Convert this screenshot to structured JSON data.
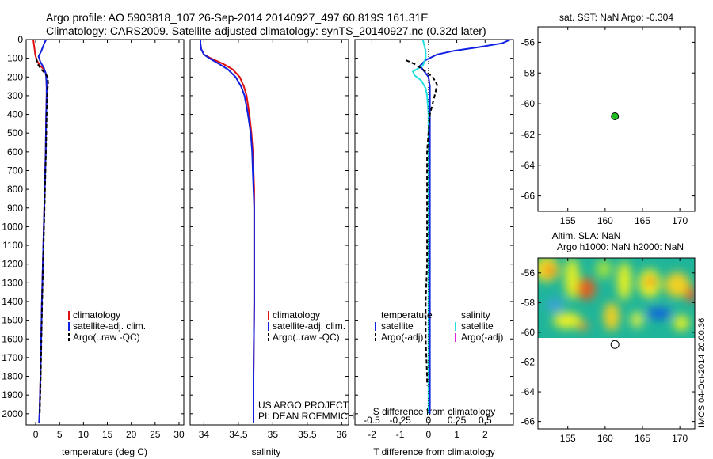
{
  "title": {
    "line1": "Argo profile: AO 5903818_107 26-Sep-2014 20140927_497 60.819S 161.31E",
    "line2": "Climatology: CARS2009. Satellite-adjusted climatology: synTS_20140927.nc (0.32d later)"
  },
  "watermark": "IMOS 04-Oct-2014 20:00:36",
  "project": {
    "line1": "US ARGO PROJECT",
    "line2": "PI: DEAN ROEMMICH"
  },
  "colors": {
    "climatology": "#e01010",
    "satellite": "#1020e0",
    "argo": "#000000",
    "salinity_satellite": "#20e0e0",
    "salinity_argo": "#e020e0",
    "marker": "#22bb22"
  },
  "chart_data": [
    {
      "id": "temperature",
      "type": "line",
      "xlabel": "temperature (deg C)",
      "xlim": [
        -2,
        31
      ],
      "xticks": [
        0,
        5,
        10,
        15,
        20,
        25,
        30
      ],
      "ylim": [
        0,
        2060
      ],
      "yticks": [
        0,
        100,
        200,
        300,
        400,
        500,
        600,
        700,
        800,
        900,
        1000,
        1100,
        1200,
        1300,
        1400,
        1500,
        1600,
        1700,
        1800,
        1900,
        2000
      ],
      "y_reversed": true,
      "legend": [
        "climatology",
        "satellite-adj. clim.",
        "Argo(..raw -QC)"
      ],
      "series": [
        {
          "name": "climatology",
          "depth": [
            0,
            40,
            80,
            110,
            140,
            160,
            180,
            200,
            250,
            300,
            400,
            600,
            800,
            1000,
            1200,
            1400,
            1600,
            1800,
            2000,
            2050
          ],
          "values": [
            -0.5,
            -0.3,
            -0.1,
            0.2,
            0.9,
            1.8,
            2.1,
            2.2,
            2.3,
            2.3,
            2.2,
            2.1,
            1.9,
            1.7,
            1.5,
            1.3,
            1.15,
            1.0,
            0.8,
            0.7
          ]
        },
        {
          "name": "satellite-adj. clim.",
          "depth": [
            0,
            20,
            60,
            90,
            120,
            150,
            180,
            200,
            250,
            300,
            400,
            600,
            800,
            1000,
            1200,
            1400,
            1600,
            1800,
            2000,
            2050
          ],
          "values": [
            2.2,
            1.8,
            1.2,
            0.6,
            1.0,
            1.7,
            2.1,
            2.2,
            2.3,
            2.3,
            2.2,
            2.1,
            1.9,
            1.7,
            1.5,
            1.3,
            1.15,
            1.0,
            0.8,
            0.7
          ]
        },
        {
          "name": "Argo(..raw -QC)",
          "depth": [
            100,
            130,
            160,
            180,
            200,
            230,
            260,
            300,
            400,
            600,
            800,
            1000,
            1200,
            1400,
            1600,
            1800,
            2000
          ],
          "values": [
            0.1,
            0.4,
            1.2,
            2.0,
            2.5,
            2.6,
            2.5,
            2.4,
            2.3,
            2.15,
            1.95,
            1.75,
            1.55,
            1.35,
            1.2,
            1.05,
            0.85
          ]
        }
      ]
    },
    {
      "id": "salinity",
      "type": "line",
      "xlabel": "salinity",
      "xlim": [
        33.8,
        36.1
      ],
      "xticks": [
        34,
        34.5,
        35,
        35.5,
        36
      ],
      "ylim": [
        0,
        2060
      ],
      "y_reversed": true,
      "legend": [
        "climatology",
        "satellite-adj. clim.",
        "Argo(..raw -QC)"
      ],
      "series": [
        {
          "name": "climatology",
          "depth": [
            0,
            20,
            50,
            80,
            100,
            130,
            160,
            200,
            250,
            300,
            400,
            500,
            600,
            700,
            800,
            900,
            1000,
            1400,
            1800,
            2050
          ],
          "values": [
            33.95,
            33.95,
            33.96,
            34.0,
            34.1,
            34.28,
            34.42,
            34.52,
            34.58,
            34.62,
            34.66,
            34.69,
            34.71,
            34.72,
            34.73,
            34.73,
            34.73,
            34.73,
            34.72,
            34.72
          ]
        },
        {
          "name": "satellite-adj. clim.",
          "depth": [
            0,
            20,
            50,
            80,
            100,
            130,
            160,
            200,
            250,
            300,
            400,
            500,
            600,
            700,
            800,
            900,
            1000,
            1400,
            1800,
            2050
          ],
          "values": [
            33.95,
            33.95,
            33.96,
            34.0,
            34.08,
            34.22,
            34.35,
            34.46,
            34.54,
            34.59,
            34.64,
            34.68,
            34.7,
            34.71,
            34.72,
            34.73,
            34.73,
            34.73,
            34.72,
            34.72
          ]
        }
      ]
    },
    {
      "id": "difference",
      "type": "line",
      "xlabel": "T difference from climatology",
      "xlim": [
        -2.6,
        3.0
      ],
      "xticks": [
        -2,
        -1,
        0,
        1,
        2
      ],
      "top_label": "S difference from climatology",
      "top_ticks": [
        "-0.5",
        "-0.25",
        "0",
        "0.25",
        "0.5"
      ],
      "top_tick_positions": [
        -2,
        -1,
        0,
        1,
        2
      ],
      "ylim": [
        0,
        2060
      ],
      "y_reversed": true,
      "legend": {
        "temperature_heading": "temperature",
        "salinity_heading": "salinity",
        "temperature": [
          "satellite",
          "Argo(-adj)"
        ],
        "salinity": [
          "satellite",
          "Argo(-adj)"
        ]
      },
      "series": [
        {
          "name": "T satellite",
          "depth": [
            0,
            20,
            40,
            60,
            80,
            110,
            140,
            170,
            200,
            250,
            300,
            400,
            600,
            800,
            1000,
            1400,
            1800,
            2000
          ],
          "values": [
            2.9,
            2.6,
            1.8,
            0.9,
            0.3,
            -0.1,
            -0.3,
            -0.15,
            0.0,
            0.05,
            0.05,
            0.05,
            0.05,
            0.05,
            0.05,
            0.05,
            0.05,
            0.05
          ]
        },
        {
          "name": "S satellite",
          "depth": [
            0,
            30,
            60,
            100,
            140,
            170,
            190,
            220,
            260,
            300,
            400,
            600,
            800,
            1000,
            1400,
            1800,
            2000
          ],
          "values": [
            -0.2,
            -0.15,
            -0.1,
            -0.1,
            -0.2,
            -0.55,
            -0.5,
            -0.25,
            -0.1,
            -0.05,
            0.0,
            0.0,
            0.0,
            0.0,
            0.0,
            0.0,
            0.0
          ]
        },
        {
          "name": "T Argo(-adj)",
          "depth": [
            110,
            130,
            160,
            200,
            240,
            280,
            400,
            600,
            800,
            1000,
            1200,
            1400,
            1600,
            1800,
            1850
          ],
          "values": [
            -0.8,
            -0.5,
            -0.2,
            0.15,
            0.3,
            0.25,
            0.05,
            -0.05,
            -0.05,
            -0.05,
            -0.05,
            -0.1,
            -0.1,
            -0.05,
            -0.05
          ]
        },
        {
          "name": "reference",
          "depth": [
            0,
            2060
          ],
          "values": [
            0,
            0
          ]
        }
      ]
    },
    {
      "id": "sst-map",
      "type": "scatter",
      "title": "sat. SST: NaN Argo: -0.304",
      "xlim": [
        151,
        172
      ],
      "xticks": [
        155,
        160,
        165,
        170
      ],
      "ylim": [
        -67,
        -55
      ],
      "yticks": [
        -56,
        -58,
        -60,
        -62,
        -64,
        -66
      ],
      "points": [
        {
          "x": 161.31,
          "y": -60.819
        }
      ]
    },
    {
      "id": "ssh-map",
      "type": "heatmap",
      "title_line1": "Altim. SLA: NaN",
      "title_line2": "Argo h1000: NaN h2000: NaN",
      "xlim": [
        151,
        172
      ],
      "xticks": [
        155,
        160,
        165,
        170
      ],
      "ylim": [
        -66.5,
        -55
      ],
      "yticks": [
        -56,
        -58,
        -60,
        -62,
        -64,
        -66
      ],
      "heatmap_lat_range": [
        -60.3,
        -55
      ],
      "points": [
        {
          "x": 161.31,
          "y": -60.819
        }
      ]
    }
  ]
}
